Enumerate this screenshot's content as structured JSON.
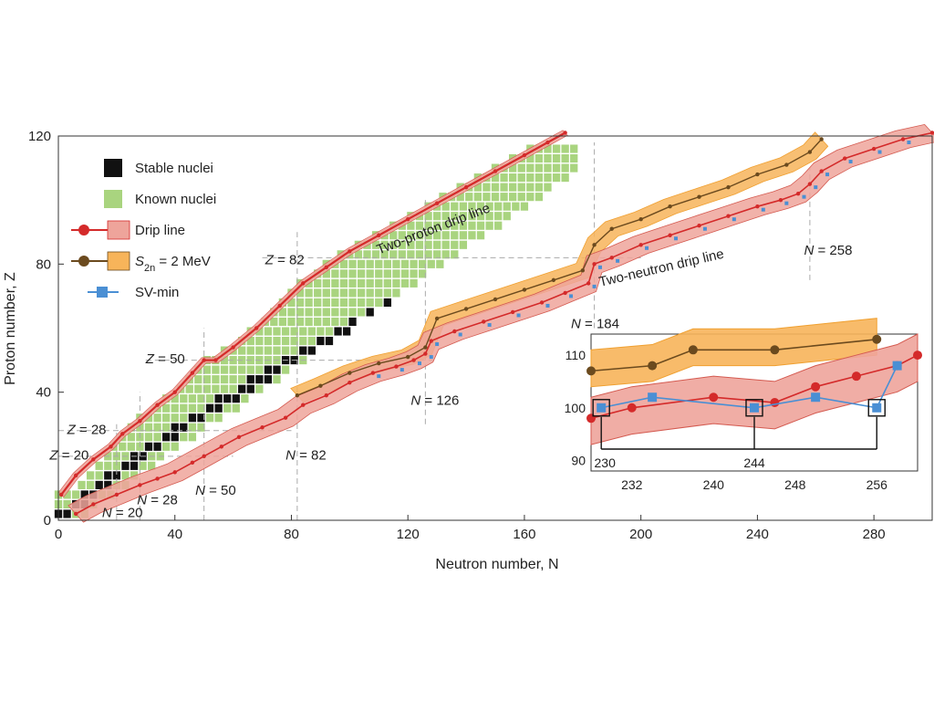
{
  "chart_data": {
    "type": "scatter",
    "xlabel": "Neutron number, N",
    "ylabel": "Proton number, Z",
    "xlim": [
      0,
      300
    ],
    "ylim": [
      0,
      120
    ],
    "x_ticks": [
      0,
      40,
      80,
      120,
      160,
      200,
      240,
      280
    ],
    "y_ticks": [
      0,
      40,
      80,
      120
    ],
    "grid": false,
    "legend_position": "top-left",
    "legend": [
      {
        "label": "Stable nuclei",
        "marker": "square",
        "color": "#111111"
      },
      {
        "label": "Known nuclei",
        "marker": "square",
        "color": "#a9d47f"
      },
      {
        "label": "Drip line",
        "marker": "circle-line-band",
        "color": "#d42a2a",
        "band_color": "#eea49b"
      },
      {
        "label_main": "S",
        "label_sub": "2n",
        "label_rest": " = 2 MeV",
        "marker": "circle-line-band",
        "color": "#6b4a1e",
        "band_color": "#f7b45a"
      },
      {
        "label": "SV-min",
        "marker": "square-line",
        "color": "#4a8fd4"
      }
    ],
    "annotations": [
      {
        "text": "Two-proton drip line",
        "x": 110,
        "y": 83,
        "rotate": -21
      },
      {
        "text": "Two-neutron drip line",
        "x": 186,
        "y": 73,
        "rotate": -13
      },
      {
        "text_italic": "Z",
        "text_rest": " = 82",
        "x": 71,
        "y": 80
      },
      {
        "text_italic": "Z",
        "text_rest": " = 50",
        "x": 30,
        "y": 49
      },
      {
        "text_italic": "Z",
        "text_rest": " = 28",
        "x": 3,
        "y": 27
      },
      {
        "text_italic": "Z",
        "text_rest": " = 20",
        "x": -3,
        "y": 19
      },
      {
        "text_italic": "N",
        "text_rest": " = 20",
        "x": 15,
        "y": 1
      },
      {
        "text_italic": "N",
        "text_rest": " = 28",
        "x": 27,
        "y": 5
      },
      {
        "text_italic": "N",
        "text_rest": " = 50",
        "x": 47,
        "y": 8
      },
      {
        "text_italic": "N",
        "text_rest": " = 82",
        "x": 78,
        "y": 19
      },
      {
        "text_italic": "N",
        "text_rest": " = 126",
        "x": 121,
        "y": 36
      },
      {
        "text_italic": "N",
        "text_rest": " = 184",
        "x": 176,
        "y": 60
      },
      {
        "text_italic": "N",
        "text_rest": " = 258",
        "x": 256,
        "y": 83
      }
    ],
    "series": [
      {
        "name": "Two-proton drip line",
        "x": [
          1,
          6,
          12,
          18,
          22,
          28,
          34,
          40,
          46,
          50,
          54,
          60,
          68,
          76,
          84,
          92,
          100,
          110,
          120,
          130,
          140,
          150,
          160,
          168,
          174
        ],
        "y": [
          8,
          14,
          19,
          23,
          27,
          31,
          36,
          40,
          46,
          50,
          50,
          54,
          60,
          67,
          74,
          79,
          84,
          89,
          94,
          99,
          104,
          109,
          114,
          118,
          121
        ]
      },
      {
        "name": "Two-neutron drip line",
        "x": [
          6,
          12,
          20,
          28,
          34,
          40,
          46,
          50,
          56,
          62,
          70,
          78,
          84,
          92,
          100,
          108,
          116,
          122,
          126,
          128,
          136,
          146,
          156,
          166,
          174,
          182,
          184,
          190,
          200,
          210,
          220,
          230,
          240,
          248,
          254,
          258,
          262,
          270,
          280,
          290,
          300
        ],
        "y": [
          2,
          5,
          8,
          11,
          13,
          15,
          18,
          20,
          23,
          26,
          29,
          32,
          36,
          39,
          43,
          46,
          48,
          50,
          52,
          56,
          59,
          62,
          65,
          68,
          71,
          74,
          80,
          82,
          86,
          89,
          92,
          95,
          98,
          100,
          102,
          105,
          109,
          113,
          116,
          119,
          121
        ]
      },
      {
        "name": "S2n = 2 MeV",
        "x": [
          82,
          90,
          100,
          110,
          120,
          126,
          130,
          140,
          150,
          160,
          170,
          180,
          184,
          190,
          200,
          210,
          220,
          230,
          240,
          250,
          258,
          262
        ],
        "y": [
          39,
          42,
          46,
          49,
          51,
          54,
          63,
          66,
          69,
          72,
          75,
          78,
          86,
          91,
          94,
          98,
          101,
          104,
          108,
          111,
          115,
          119
        ]
      }
    ],
    "inset": {
      "xlabel_ticks": [
        232,
        240,
        248,
        256
      ],
      "ylabel_ticks": [
        90,
        100,
        110
      ],
      "xlim": [
        228,
        260
      ],
      "ylim": [
        88,
        114
      ],
      "callout_labels": [
        "230",
        "244"
      ],
      "drip_line": {
        "x": [
          228,
          232,
          240,
          246,
          250,
          254,
          258,
          260
        ],
        "y": [
          98,
          100,
          102,
          101,
          104,
          106,
          108,
          110
        ]
      },
      "s2n_line": {
        "x": [
          228,
          234,
          238,
          246,
          256
        ],
        "y": [
          107,
          108,
          111,
          111,
          113
        ]
      },
      "sv_min": {
        "x": [
          229,
          234,
          244,
          250,
          256,
          258
        ],
        "y": [
          100,
          102,
          100,
          102,
          100,
          108
        ]
      }
    }
  }
}
